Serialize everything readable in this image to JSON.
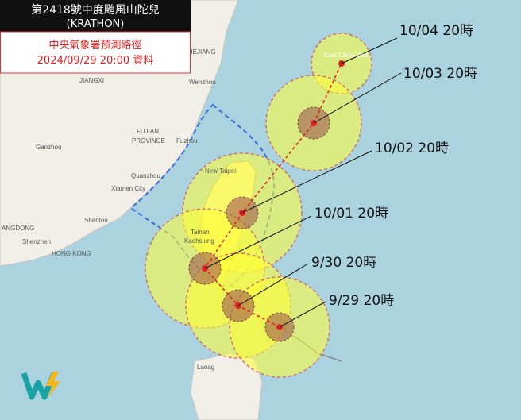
{
  "title_box": {
    "title": "第2418號中度颱風山陀兒",
    "name": "(KRATHON)",
    "source": "中央氣象署預測路徑",
    "issued": "2024/09/29 20:00 資料"
  },
  "forecast_labels": [
    "10/04 20時",
    "10/03 20時",
    "10/02 20時",
    "10/01 20時",
    "9/30 20時",
    "9/29 20時"
  ],
  "place_names": [
    "ZHEJIANG",
    "Wenzhou",
    "JIANGXI",
    "FUJIAN",
    "PROVINCE",
    "Ganzhou",
    "Fuzhou",
    "Quanzhou",
    "Xiamen City",
    "Shantou",
    "ANGDONG",
    "Shenzhen",
    "HONG KONG",
    "New Taipei",
    "Tainan",
    "Kaohsiung",
    "Laoag",
    "East China Sea"
  ]
}
